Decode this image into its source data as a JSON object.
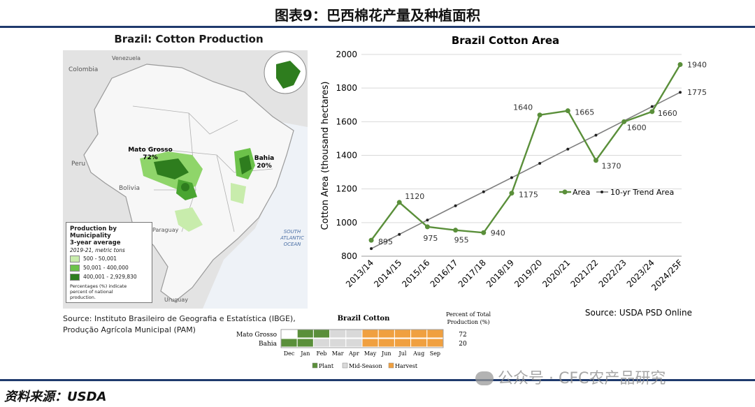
{
  "figure_title": "图表9：巴西棉花产量及种植面积",
  "map": {
    "title": "Brazil: Cotton Production",
    "labels": {
      "colombia": "Colombia",
      "venezuela": "Venezuela",
      "peru": "Peru",
      "bolivia": "Bolivia",
      "paraguay": "Paraguay",
      "uruguay": "Uruguay",
      "ocean": [
        "SOUTH",
        "ATLANTIC",
        "OCEAN"
      ],
      "mato_grosso": "Mato Grosso",
      "mato_grosso_pct": "72%",
      "bahia": "Bahia",
      "bahia_pct": "20%"
    },
    "legend": {
      "heading": [
        "Production by Municipality",
        "3-year average"
      ],
      "subheading": "2019-21, metric tons",
      "items": [
        {
          "label": "500 - 50,001",
          "color": "#c8ecac"
        },
        {
          "label": "50,001 - 400,000",
          "color": "#6cc24a"
        },
        {
          "label": "400,001 - 2,929,830",
          "color": "#2e7d1e"
        }
      ],
      "note": [
        "Percentages (%) indicate",
        "percent of national",
        "production."
      ]
    },
    "source": [
      "Source: Instituto Brasileiro de Geografia e Estatística (IBGE),",
      "Produção Agrícola Municipal (PAM)"
    ]
  },
  "chart_data": {
    "type": "line",
    "title": "Brazil Cotton Area",
    "xlabel": "",
    "ylabel": "Cotton Area (thousand hectares)",
    "categories": [
      "2013/14",
      "2014/15",
      "2015/16",
      "2016/17",
      "2017/18",
      "2018/19",
      "2019/20",
      "2020/21",
      "2021/22",
      "2022/23",
      "2023/24",
      "2024/25F"
    ],
    "ylim": [
      800,
      2000
    ],
    "yticks": [
      800,
      1000,
      1200,
      1400,
      1600,
      1800,
      2000
    ],
    "series": [
      {
        "name": "Area",
        "color": "#5a8f3a",
        "values": [
          895,
          1120,
          975,
          955,
          940,
          1175,
          1640,
          1665,
          1370,
          1600,
          1660,
          1940
        ],
        "labels": [
          "895",
          "1120",
          "975",
          "955",
          "940",
          "1175",
          "1640",
          "1665",
          "1370",
          "1600",
          "1660",
          "1940"
        ]
      },
      {
        "name": "10-yr Trend Area",
        "color": "#7f7f7f",
        "values": [
          845,
          930,
          1015,
          1100,
          1183,
          1267,
          1352,
          1437,
          1520,
          1605,
          1690,
          1775
        ],
        "labels": [
          "",
          "",
          "",
          "",
          "",
          "",
          "",
          "",
          "",
          "",
          "",
          "1775"
        ]
      }
    ],
    "legend_position": "center-right",
    "source": "Source: USDA PSD Online"
  },
  "calendar": {
    "title": "Brazil Cotton",
    "pct_header": [
      "Percent of Total",
      "Production (%)"
    ],
    "months": [
      "Dec",
      "Jan",
      "Feb",
      "Mar",
      "Apr",
      "May",
      "Jun",
      "Jul",
      "Aug",
      "Sep"
    ],
    "rows": [
      {
        "region": "Mato Grosso",
        "pct": "72",
        "phases": [
          "none",
          "plant",
          "plant",
          "mid",
          "mid",
          "harvest",
          "harvest",
          "harvest",
          "harvest",
          "harvest"
        ]
      },
      {
        "region": "Bahia",
        "pct": "20",
        "phases": [
          "plant",
          "plant",
          "mid",
          "mid",
          "mid",
          "harvest",
          "harvest",
          "harvest",
          "harvest",
          "harvest"
        ]
      }
    ],
    "legend": [
      {
        "key": "plant",
        "label": "Plant",
        "color": "#5a8f3a"
      },
      {
        "key": "mid",
        "label": "Mid-Season",
        "color": "#d9d9d9"
      },
      {
        "key": "harvest",
        "label": "Harvest",
        "color": "#f0a040"
      }
    ]
  },
  "footer_source": "资料来源：USDA",
  "watermark": "公众号 · CFC农产品研究"
}
